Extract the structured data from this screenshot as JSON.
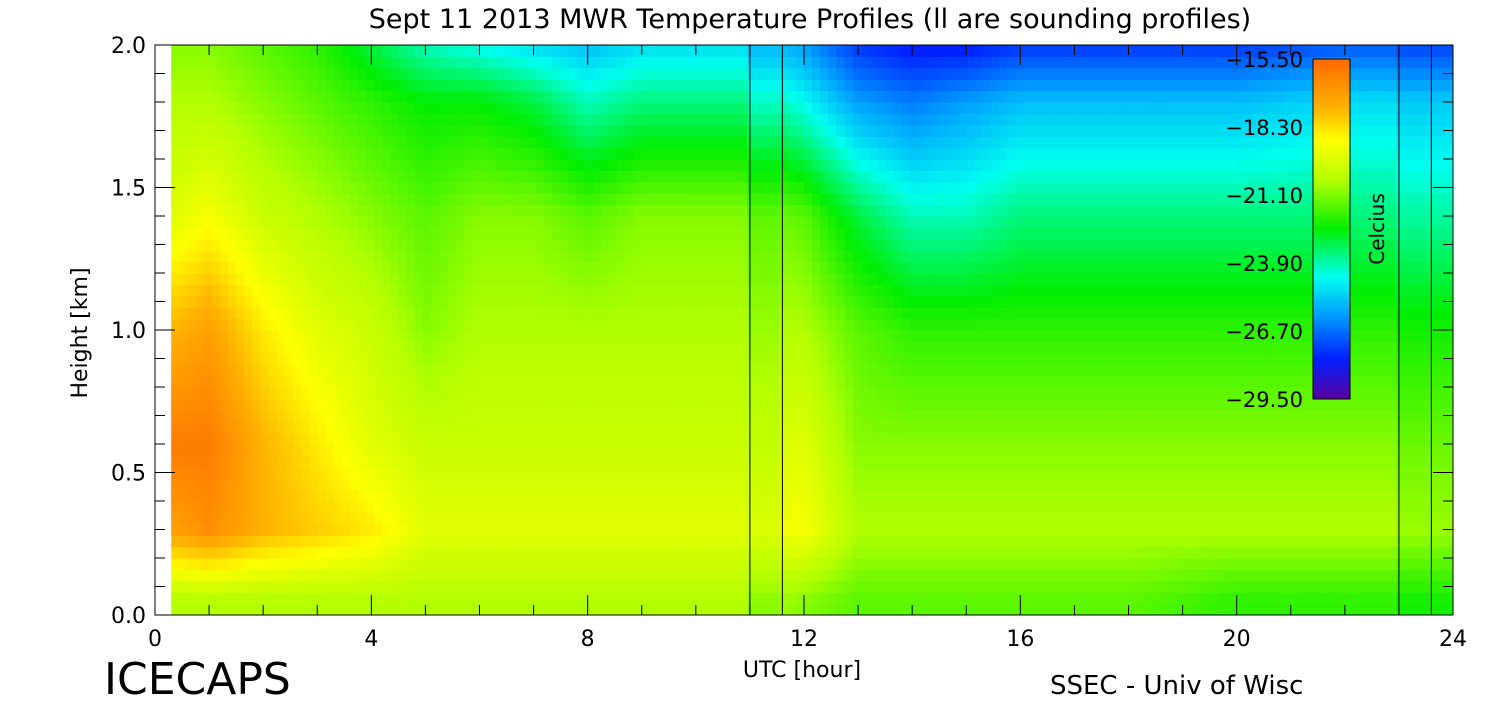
{
  "chart_data": {
    "type": "heatmap",
    "title": "Sept 11 2013 MWR Temperature Profiles (ll are sounding profiles)",
    "xlabel": "UTC [hour]",
    "ylabel": "Height [km]",
    "xlim": [
      0,
      24
    ],
    "ylim": [
      0,
      2.0
    ],
    "x_ticks": [
      "0",
      "4",
      "8",
      "12",
      "16",
      "20",
      "24"
    ],
    "y_ticks": [
      "0.0",
      "0.5",
      "1.0",
      "1.5",
      "2.0"
    ],
    "colorbar": {
      "label": "Celcius",
      "ticks": [
        "-15.50",
        "-18.30",
        "-21.10",
        "-23.90",
        "-26.70",
        "-29.50"
      ],
      "range": [
        -29.5,
        -15.5
      ]
    },
    "sounding_times_utc": [
      11.0,
      11.6,
      23.0,
      23.6
    ],
    "data_gaps_utc": [
      [
        0,
        0.37
      ],
      [
        11.0,
        11.6
      ],
      [
        23.0,
        24
      ]
    ],
    "approx_temperature_c": {
      "x_hours": [
        0.4,
        1,
        2,
        3,
        4,
        5,
        6,
        7,
        8,
        9,
        10,
        11,
        12,
        13,
        14,
        15,
        16,
        18,
        20,
        22,
        24
      ],
      "heights_km": [
        0.05,
        0.3,
        0.6,
        1.0,
        1.4,
        1.8,
        2.0
      ],
      "values": [
        [
          -20.5,
          -17.0,
          -16.0,
          -17.5,
          -19.5,
          -20.5,
          -21.0
        ],
        [
          -20.5,
          -16.5,
          -16.0,
          -17.0,
          -19.0,
          -20.5,
          -21.0
        ],
        [
          -20.5,
          -17.5,
          -17.5,
          -18.5,
          -20.0,
          -21.0,
          -21.5
        ],
        [
          -20.5,
          -18.0,
          -18.5,
          -19.5,
          -20.5,
          -21.5,
          -22.0
        ],
        [
          -20.5,
          -18.5,
          -19.5,
          -20.0,
          -21.0,
          -22.0,
          -23.0
        ],
        [
          -20.5,
          -19.5,
          -20.0,
          -21.0,
          -21.5,
          -22.5,
          -24.0
        ],
        [
          -20.5,
          -19.5,
          -20.0,
          -20.5,
          -21.0,
          -22.5,
          -24.5
        ],
        [
          -20.5,
          -19.5,
          -20.0,
          -20.5,
          -21.0,
          -23.0,
          -25.0
        ],
        [
          -20.5,
          -19.5,
          -20.0,
          -20.5,
          -21.5,
          -24.0,
          -25.5
        ],
        [
          -20.5,
          -19.5,
          -20.0,
          -20.5,
          -21.0,
          -23.5,
          -25.0
        ],
        [
          -20.5,
          -19.5,
          -20.0,
          -20.5,
          -21.0,
          -23.5,
          -25.0
        ],
        [
          -20.5,
          -19.5,
          -20.0,
          -20.5,
          -21.0,
          -23.5,
          -25.0
        ],
        [
          -21.0,
          -19.0,
          -19.5,
          -20.5,
          -21.5,
          -24.5,
          -26.0
        ],
        [
          -21.5,
          -20.5,
          -21.0,
          -21.5,
          -23.0,
          -26.0,
          -27.5
        ],
        [
          -21.5,
          -20.5,
          -21.0,
          -22.0,
          -24.0,
          -26.5,
          -28.0
        ],
        [
          -21.5,
          -20.5,
          -21.0,
          -22.0,
          -24.0,
          -26.0,
          -28.0
        ],
        [
          -21.5,
          -20.5,
          -21.0,
          -22.0,
          -23.5,
          -25.5,
          -27.5
        ],
        [
          -21.5,
          -20.5,
          -21.0,
          -22.0,
          -23.5,
          -25.5,
          -27.5
        ],
        [
          -22.0,
          -20.5,
          -21.0,
          -22.0,
          -23.5,
          -25.5,
          -27.5
        ],
        [
          -22.0,
          -20.5,
          -21.0,
          -22.0,
          -23.5,
          -25.0,
          -27.0
        ],
        [
          -22.0,
          -20.5,
          -21.0,
          -22.0,
          -23.5,
          -25.0,
          -27.0
        ]
      ]
    }
  },
  "footer": {
    "left_logo": "ICECAPS",
    "right_credit": "SSEC - Univ of Wisc"
  },
  "colors": {
    "warm": "#ff6a00",
    "mid": "#00ee00",
    "cold": "#0000ff",
    "coldest": "#5a00a0"
  }
}
